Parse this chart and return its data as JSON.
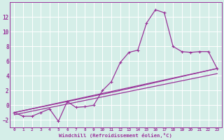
{
  "xlabel": "Windchill (Refroidissement éolien,°C)",
  "bg_color": "#d5eee8",
  "line_color": "#993399",
  "grid_color": "#ffffff",
  "xlim": [
    -0.5,
    23.5
  ],
  "ylim": [
    -3.0,
    14.0
  ],
  "xticks": [
    0,
    1,
    2,
    3,
    4,
    5,
    6,
    7,
    8,
    9,
    10,
    11,
    12,
    13,
    14,
    15,
    16,
    17,
    18,
    19,
    20,
    21,
    22,
    23
  ],
  "yticks": [
    -2,
    0,
    2,
    4,
    6,
    8,
    10,
    12
  ],
  "line1_x": [
    0,
    1,
    2,
    3,
    4,
    5,
    6,
    7,
    8,
    9,
    10,
    11,
    12,
    13,
    14,
    15,
    16,
    17,
    18,
    19,
    20,
    21,
    22,
    23
  ],
  "line1_y": [
    -1.0,
    -1.5,
    -1.5,
    -1.0,
    -0.5,
    -2.2,
    0.5,
    -0.3,
    -0.2,
    0.0,
    2.0,
    3.2,
    5.8,
    7.2,
    7.5,
    11.2,
    13.0,
    12.6,
    8.0,
    7.3,
    7.2,
    7.3,
    7.3,
    5.0
  ],
  "line2_x": [
    0,
    23
  ],
  "line2_y": [
    -1.0,
    5.0
  ],
  "line3_x": [
    0,
    12,
    23
  ],
  "line3_y": [
    -1.0,
    2.0,
    5.0
  ],
  "line4_x": [
    0,
    23
  ],
  "line4_y": [
    -1.3,
    4.3
  ]
}
